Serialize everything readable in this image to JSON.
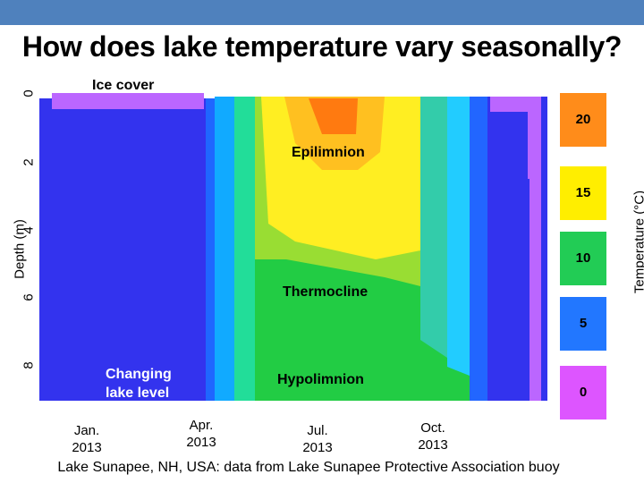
{
  "title": "How does lake temperature vary seasonally?",
  "caption": "Lake Sunapee, NH, USA: data from Lake Sunapee Protective Association buoy",
  "chart_data": {
    "type": "heatmap",
    "ylabel": "Depth (m)",
    "colorbar_label": "Temperature (°C)",
    "y_ticks": [
      "0",
      "2",
      "4",
      "6",
      "8"
    ],
    "x_ticks": [
      "Jan.\n2013",
      "Apr.\n2013",
      "Jul.\n2013",
      "Oct.\n2013"
    ],
    "legend": [
      {
        "label": "20",
        "color": "#ff8c1a"
      },
      {
        "label": "15",
        "color": "#ffee00"
      },
      {
        "label": "10",
        "color": "#22cc55"
      },
      {
        "label": "5",
        "color": "#2277ff"
      },
      {
        "label": "0",
        "color": "#dd55ff"
      }
    ],
    "annotations": {
      "ice_cover": "Ice cover",
      "epilimnion": "Epilimnion",
      "thermocline": "Thermocline",
      "hypolimnion": "Hypolimnion",
      "lake_level": "Changing\nlake level"
    },
    "y_range": [
      0,
      9
    ],
    "x_range": [
      "Jan. 2013",
      "Dec. 2013"
    ]
  }
}
